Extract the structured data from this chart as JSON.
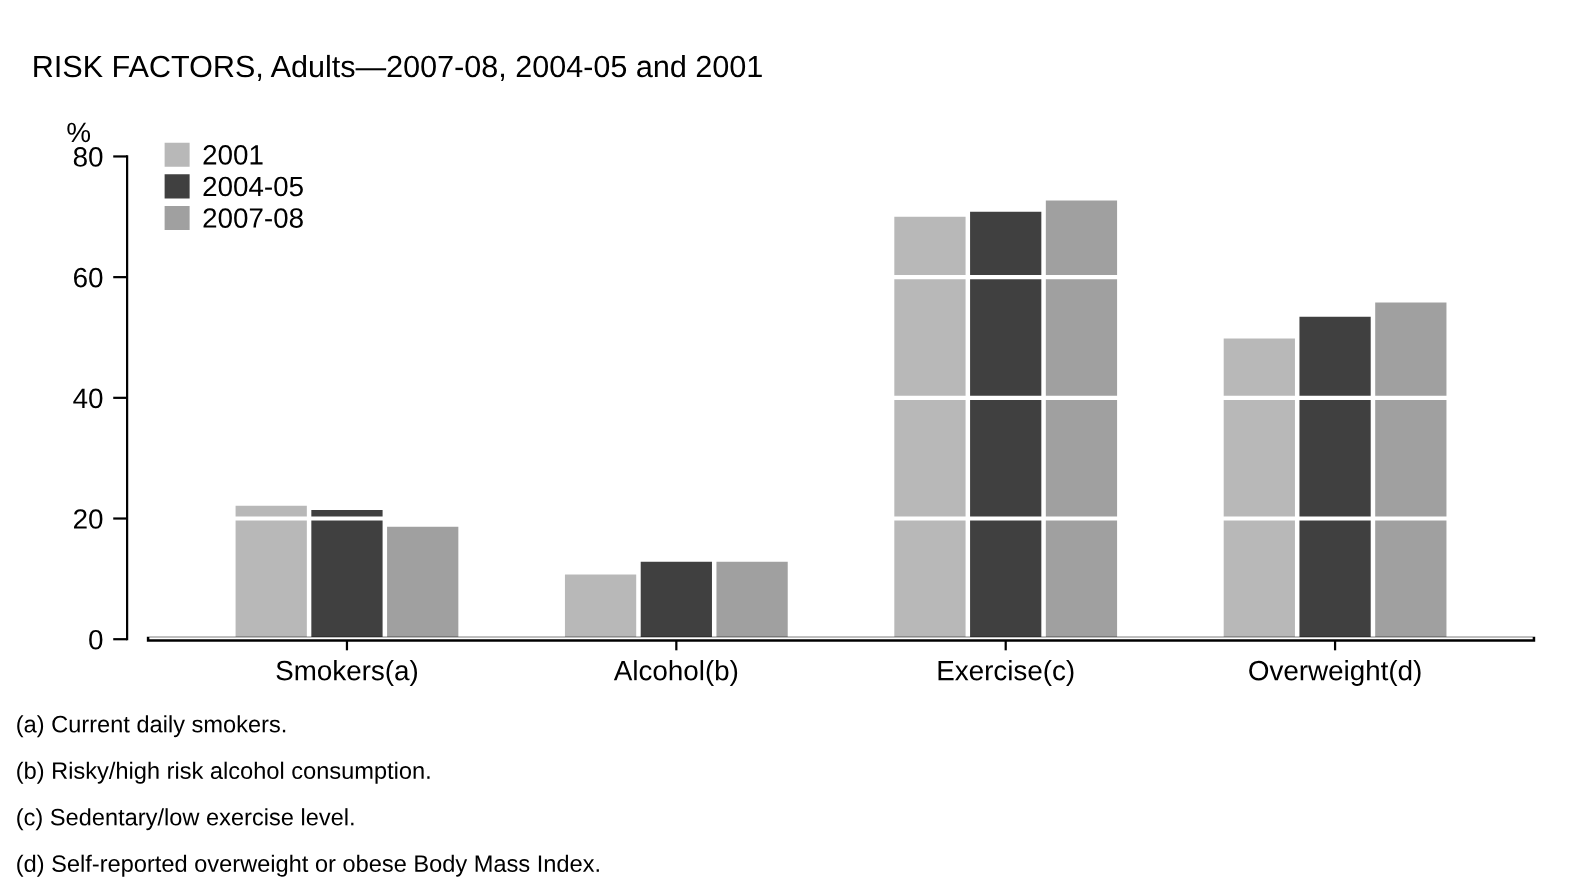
{
  "chart_data": {
    "type": "bar",
    "title": "RISK FACTORS, Adults—2007-08, 2004-05 and 2001",
    "ylabel": "%",
    "categories": [
      "Smokers(a)",
      "Alcohol(b)",
      "Exercise(c)",
      "Overweight(d)"
    ],
    "series": [
      {
        "name": "2001",
        "color": "#b8b8b8",
        "values": [
          22.3,
          10.9,
          70.2,
          50.0
        ]
      },
      {
        "name": "2004-05",
        "color": "#404040",
        "values": [
          21.6,
          13.0,
          71.0,
          53.6
        ]
      },
      {
        "name": "2007-08",
        "color": "#a0a0a0",
        "values": [
          18.8,
          13.0,
          72.9,
          56.0
        ]
      }
    ],
    "ylim": [
      0,
      80
    ],
    "yticks": [
      0,
      20,
      40,
      60,
      80
    ],
    "grid": "y",
    "legend": "top left",
    "annotations": [
      "(a) Current daily smokers.",
      "(b) Risky/high risk alcohol consumption.",
      "(c) Sedentary/low exercise level.",
      "(d) Self-reported overweight or obese Body Mass Index."
    ]
  }
}
